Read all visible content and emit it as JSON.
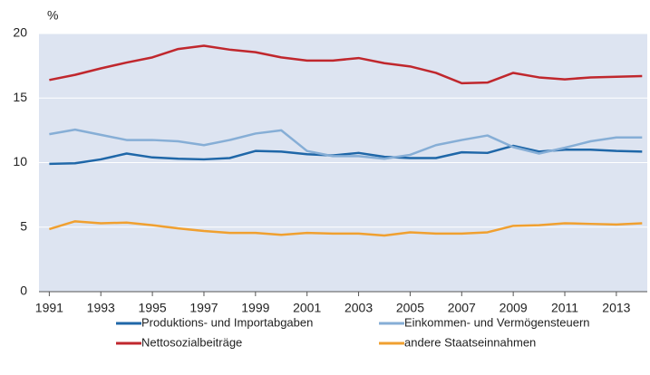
{
  "chart_data": {
    "type": "line",
    "unit_label": "%",
    "x": [
      1991,
      1992,
      1993,
      1994,
      1995,
      1996,
      1997,
      1998,
      1999,
      2000,
      2001,
      2002,
      2003,
      2004,
      2005,
      2006,
      2007,
      2008,
      2009,
      2010,
      2011,
      2012,
      2013,
      2014
    ],
    "xlim": [
      1990.6,
      2014.2
    ],
    "xticks": [
      1991,
      1993,
      1995,
      1997,
      1999,
      2001,
      2003,
      2005,
      2007,
      2009,
      2011,
      2013
    ],
    "ylim": [
      0,
      20
    ],
    "yticks": [
      0,
      5,
      10,
      15,
      20
    ],
    "grid": true,
    "series": [
      {
        "name": "Produktions- und Importabgaben",
        "color": "#1f67a8",
        "values": [
          9.9,
          9.95,
          10.25,
          10.7,
          10.4,
          10.3,
          10.25,
          10.35,
          10.9,
          10.85,
          10.65,
          10.55,
          10.75,
          10.45,
          10.35,
          10.35,
          10.8,
          10.75,
          11.3,
          10.85,
          11.0,
          11.0,
          10.9,
          10.85
        ]
      },
      {
        "name": "Einkommen- und Vermögensteuern",
        "color": "#86aed6",
        "values": [
          12.2,
          12.55,
          12.15,
          11.75,
          11.75,
          11.65,
          11.35,
          11.75,
          12.25,
          12.5,
          10.9,
          10.5,
          10.5,
          10.3,
          10.6,
          11.35,
          11.75,
          12.1,
          11.2,
          10.7,
          11.15,
          11.65,
          11.95,
          11.95
        ]
      },
      {
        "name": "Nettosozialbeiträge",
        "color": "#c0272d",
        "values": [
          16.4,
          16.8,
          17.3,
          17.75,
          18.15,
          18.8,
          19.05,
          18.75,
          18.55,
          18.15,
          17.9,
          17.9,
          18.1,
          17.7,
          17.45,
          16.95,
          16.15,
          16.2,
          16.95,
          16.6,
          16.45,
          16.6,
          16.65,
          16.7
        ]
      },
      {
        "name": "andere Staatseinnahmen",
        "color": "#f0a030",
        "values": [
          4.85,
          5.45,
          5.3,
          5.35,
          5.15,
          4.9,
          4.7,
          4.55,
          4.55,
          4.4,
          4.55,
          4.5,
          4.5,
          4.35,
          4.6,
          4.5,
          4.5,
          4.6,
          5.1,
          5.15,
          5.3,
          5.25,
          5.2,
          5.3
        ]
      }
    ]
  }
}
